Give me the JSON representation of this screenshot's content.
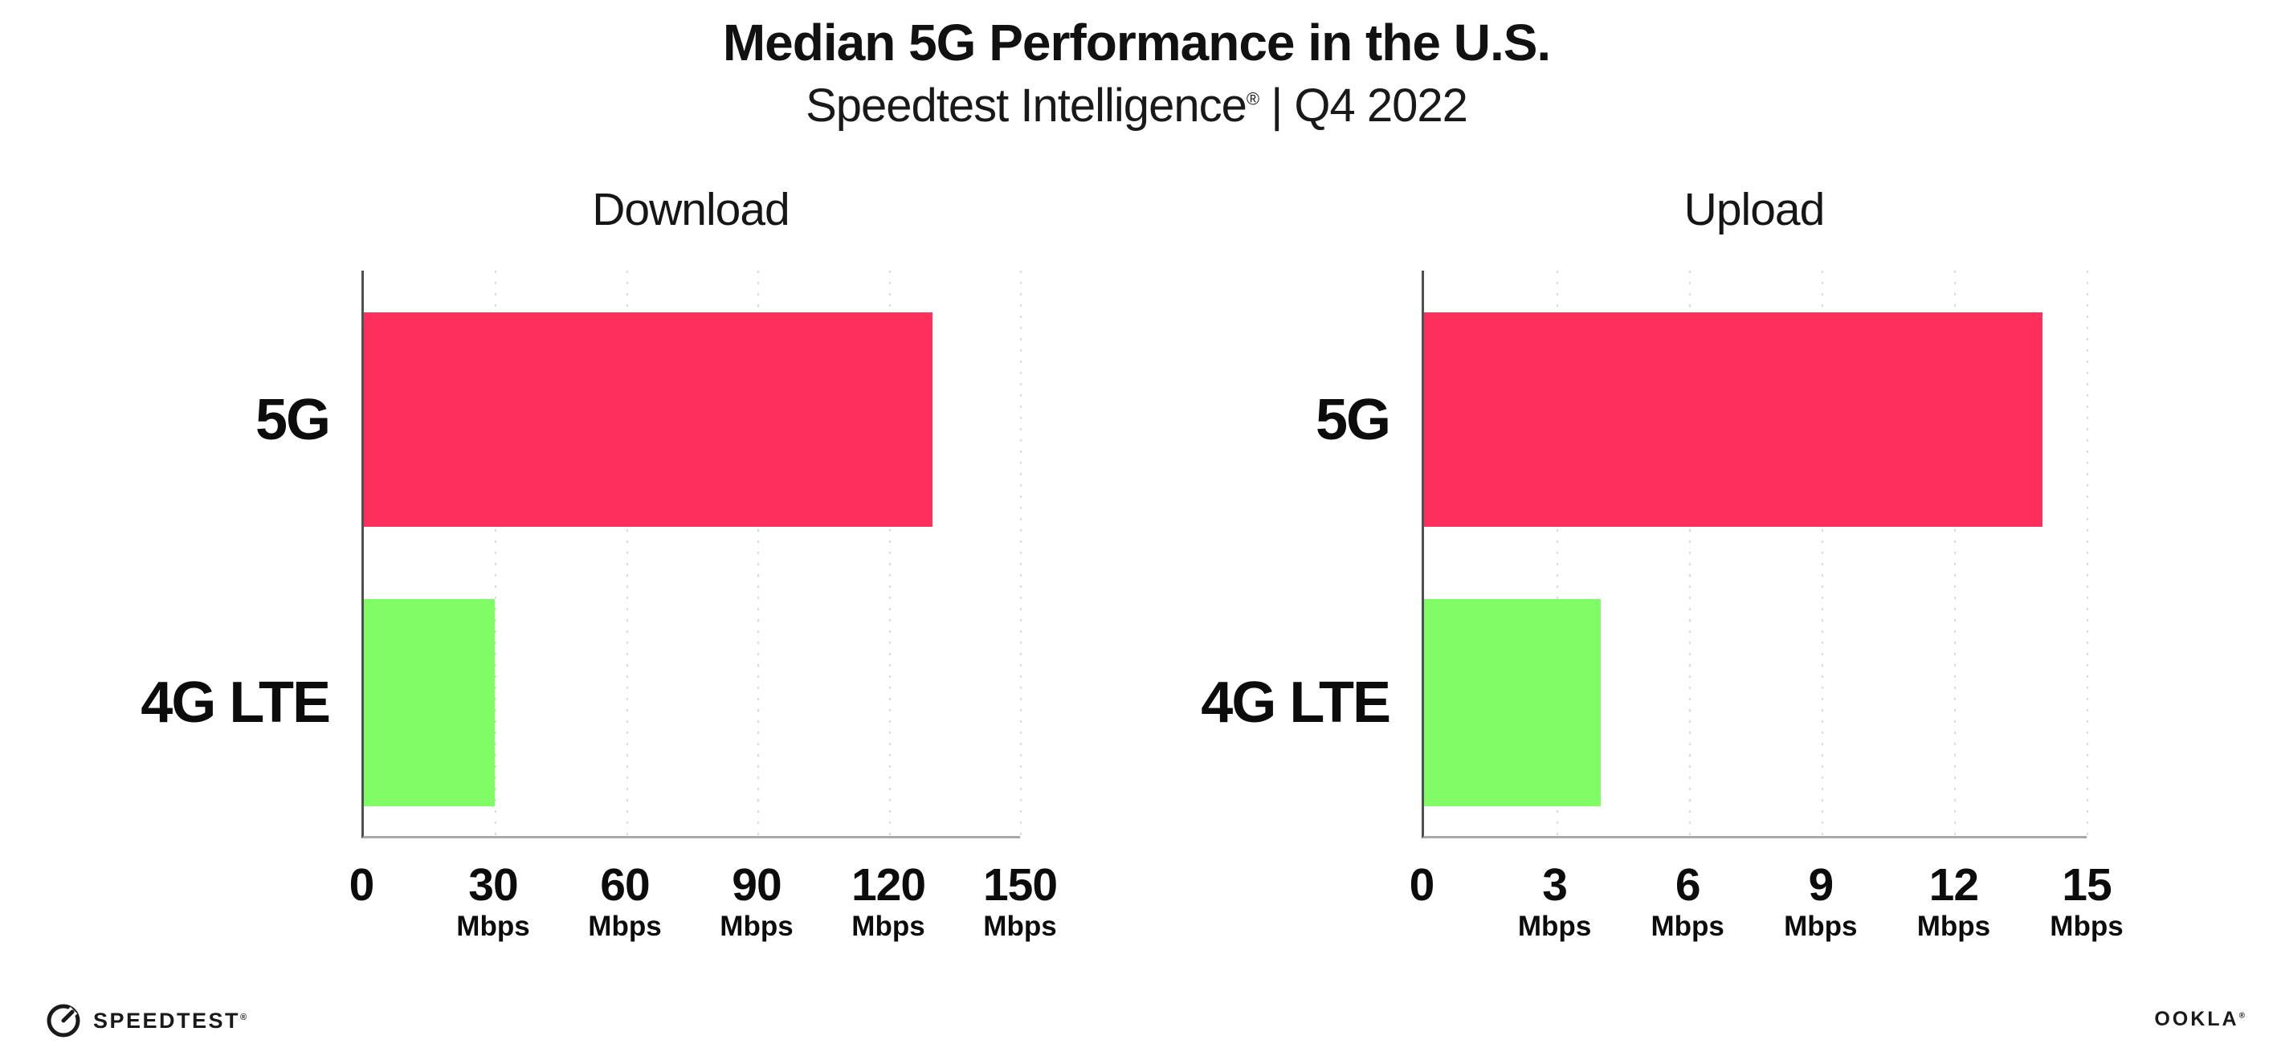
{
  "header": {
    "title": "Median 5G Performance in the U.S.",
    "subtitle_name": "Speedtest Intelligence",
    "subtitle_reg": "®",
    "subtitle_rest": "| Q4 2022"
  },
  "chart_data": [
    {
      "type": "bar",
      "orientation": "horizontal",
      "title": "Download",
      "categories": [
        "5G",
        "4G LTE"
      ],
      "values": [
        130,
        30
      ],
      "unit": "Mbps",
      "xlim": [
        0,
        150
      ],
      "xticks": [
        0,
        30,
        60,
        90,
        120,
        150
      ],
      "tick_unit_label": "Mbps",
      "bar_colors": [
        "#FF2E5A",
        "#7FFC66"
      ],
      "grid": "dotted-vertical",
      "legend": "none"
    },
    {
      "type": "bar",
      "orientation": "horizontal",
      "title": "Upload",
      "categories": [
        "5G",
        "4G LTE"
      ],
      "values": [
        14,
        4
      ],
      "unit": "Mbps",
      "xlim": [
        0,
        15
      ],
      "xticks": [
        0,
        3,
        6,
        9,
        12,
        15
      ],
      "tick_unit_label": "Mbps",
      "bar_colors": [
        "#FF2E5A",
        "#7FFC66"
      ],
      "grid": "dotted-vertical",
      "legend": "none"
    }
  ],
  "footer": {
    "speedtest_label": "SPEEDTEST",
    "speedtest_reg": "®",
    "ookla_label": "OOKLA",
    "ookla_reg": "®"
  },
  "colors": {
    "bar_5g": "#FF2E5A",
    "bar_4g_lte": "#7FFC66",
    "gridline": "#D9D9E3",
    "x_axis": "#A9A9AD",
    "y_axis": "#4F4F55",
    "text": "#111111"
  }
}
